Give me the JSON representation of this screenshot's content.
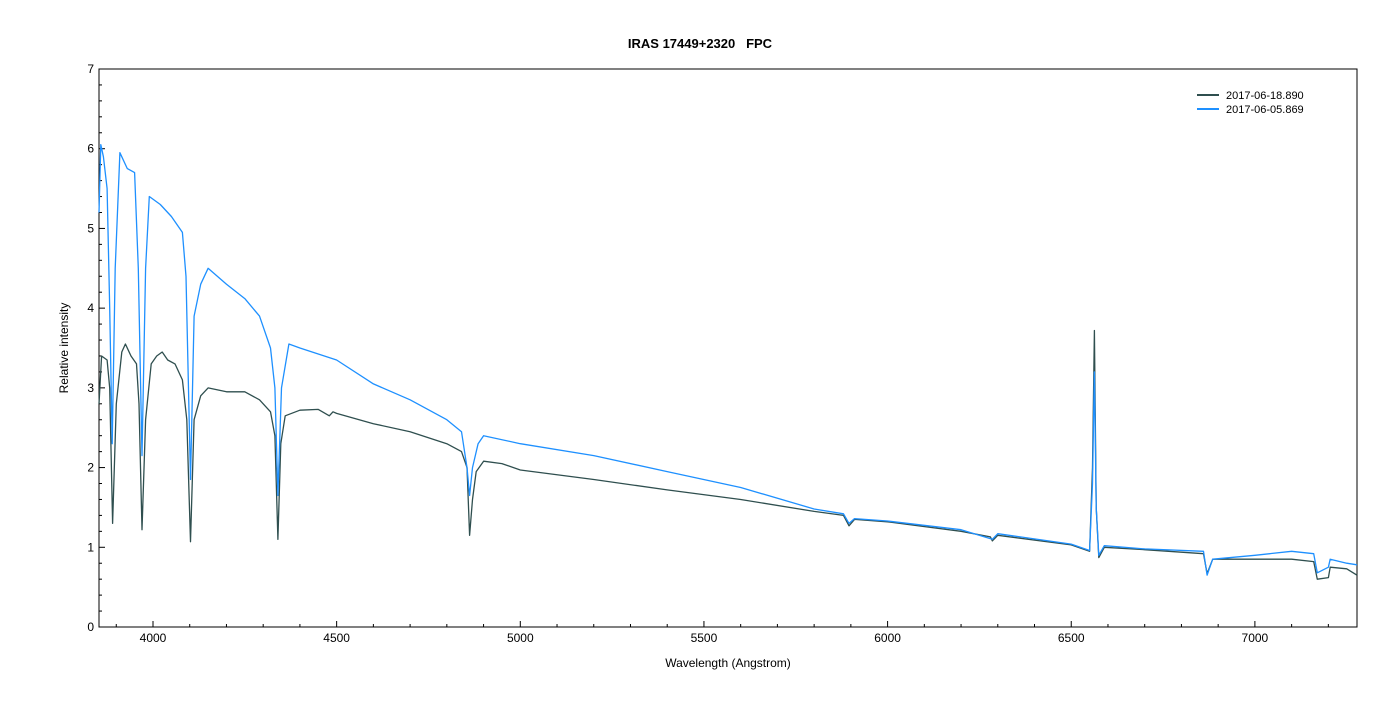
{
  "chart_data": {
    "type": "line",
    "title": "IRAS 17449+2320   FPC",
    "xlabel": "Wavelength (Angstrom)",
    "ylabel": "Relative intensity",
    "xlim": [
      3853,
      7278
    ],
    "ylim": [
      0,
      7
    ],
    "xticks": [
      4000,
      4500,
      5000,
      5500,
      6000,
      6500,
      7000
    ],
    "xminor_step": 100,
    "yticks": [
      0,
      1,
      2,
      3,
      4,
      5,
      6,
      7
    ],
    "yminor_step": 0.2,
    "grid": false,
    "legend_position": "top-right",
    "series": [
      {
        "name": "2017-06-18.890",
        "color": "#2f4f4f",
        "points": [
          [
            3853,
            2.8
          ],
          [
            3860,
            3.4
          ],
          [
            3875,
            3.35
          ],
          [
            3882,
            3.0
          ],
          [
            3890,
            1.3
          ],
          [
            3900,
            2.8
          ],
          [
            3915,
            3.45
          ],
          [
            3925,
            3.55
          ],
          [
            3940,
            3.4
          ],
          [
            3955,
            3.3
          ],
          [
            3962,
            2.8
          ],
          [
            3970,
            1.22
          ],
          [
            3980,
            2.6
          ],
          [
            3995,
            3.3
          ],
          [
            4010,
            3.4
          ],
          [
            4025,
            3.45
          ],
          [
            4040,
            3.35
          ],
          [
            4060,
            3.3
          ],
          [
            4080,
            3.1
          ],
          [
            4092,
            2.6
          ],
          [
            4102,
            1.07
          ],
          [
            4112,
            2.6
          ],
          [
            4130,
            2.9
          ],
          [
            4150,
            3.0
          ],
          [
            4200,
            2.95
          ],
          [
            4250,
            2.95
          ],
          [
            4290,
            2.85
          ],
          [
            4320,
            2.7
          ],
          [
            4332,
            2.4
          ],
          [
            4340,
            1.1
          ],
          [
            4348,
            2.3
          ],
          [
            4360,
            2.65
          ],
          [
            4400,
            2.72
          ],
          [
            4450,
            2.73
          ],
          [
            4480,
            2.65
          ],
          [
            4490,
            2.7
          ],
          [
            4500,
            2.68
          ],
          [
            4600,
            2.55
          ],
          [
            4700,
            2.45
          ],
          [
            4800,
            2.3
          ],
          [
            4840,
            2.2
          ],
          [
            4855,
            2.0
          ],
          [
            4862,
            1.15
          ],
          [
            4870,
            1.6
          ],
          [
            4880,
            1.95
          ],
          [
            4900,
            2.08
          ],
          [
            4950,
            2.05
          ],
          [
            5000,
            1.97
          ],
          [
            5200,
            1.85
          ],
          [
            5400,
            1.72
          ],
          [
            5600,
            1.6
          ],
          [
            5800,
            1.45
          ],
          [
            5880,
            1.4
          ],
          [
            5895,
            1.27
          ],
          [
            5910,
            1.35
          ],
          [
            6000,
            1.32
          ],
          [
            6200,
            1.2
          ],
          [
            6280,
            1.13
          ],
          [
            6285,
            1.08
          ],
          [
            6300,
            1.15
          ],
          [
            6500,
            1.03
          ],
          [
            6550,
            0.95
          ],
          [
            6558,
            2.0
          ],
          [
            6563,
            3.72
          ],
          [
            6568,
            1.5
          ],
          [
            6575,
            0.87
          ],
          [
            6590,
            1.0
          ],
          [
            6700,
            0.97
          ],
          [
            6860,
            0.92
          ],
          [
            6870,
            0.67
          ],
          [
            6885,
            0.85
          ],
          [
            7000,
            0.85
          ],
          [
            7100,
            0.85
          ],
          [
            7160,
            0.82
          ],
          [
            7170,
            0.6
          ],
          [
            7200,
            0.62
          ],
          [
            7205,
            0.75
          ],
          [
            7250,
            0.73
          ],
          [
            7278,
            0.65
          ]
        ]
      },
      {
        "name": "2017-06-05.869",
        "color": "#1e90ff",
        "points": [
          [
            3853,
            5.2
          ],
          [
            3858,
            6.05
          ],
          [
            3865,
            5.9
          ],
          [
            3875,
            5.5
          ],
          [
            3882,
            4.0
          ],
          [
            3889,
            2.3
          ],
          [
            3897,
            4.5
          ],
          [
            3910,
            5.95
          ],
          [
            3930,
            5.75
          ],
          [
            3950,
            5.7
          ],
          [
            3960,
            4.5
          ],
          [
            3970,
            2.15
          ],
          [
            3980,
            4.5
          ],
          [
            3990,
            5.4
          ],
          [
            4020,
            5.3
          ],
          [
            4050,
            5.15
          ],
          [
            4080,
            4.95
          ],
          [
            4090,
            4.4
          ],
          [
            4102,
            1.85
          ],
          [
            4112,
            3.9
          ],
          [
            4130,
            4.3
          ],
          [
            4150,
            4.5
          ],
          [
            4200,
            4.3
          ],
          [
            4250,
            4.12
          ],
          [
            4290,
            3.9
          ],
          [
            4320,
            3.5
          ],
          [
            4332,
            3.0
          ],
          [
            4340,
            1.65
          ],
          [
            4350,
            3.0
          ],
          [
            4370,
            3.55
          ],
          [
            4400,
            3.5
          ],
          [
            4500,
            3.35
          ],
          [
            4600,
            3.05
          ],
          [
            4700,
            2.85
          ],
          [
            4800,
            2.6
          ],
          [
            4840,
            2.45
          ],
          [
            4855,
            2.0
          ],
          [
            4862,
            1.65
          ],
          [
            4870,
            2.0
          ],
          [
            4885,
            2.3
          ],
          [
            4900,
            2.4
          ],
          [
            5000,
            2.3
          ],
          [
            5200,
            2.15
          ],
          [
            5400,
            1.95
          ],
          [
            5600,
            1.75
          ],
          [
            5800,
            1.48
          ],
          [
            5880,
            1.42
          ],
          [
            5895,
            1.3
          ],
          [
            5910,
            1.36
          ],
          [
            6000,
            1.33
          ],
          [
            6200,
            1.22
          ],
          [
            6285,
            1.1
          ],
          [
            6300,
            1.17
          ],
          [
            6500,
            1.04
          ],
          [
            6550,
            0.96
          ],
          [
            6558,
            1.8
          ],
          [
            6563,
            3.2
          ],
          [
            6568,
            1.5
          ],
          [
            6575,
            0.9
          ],
          [
            6590,
            1.02
          ],
          [
            6700,
            0.98
          ],
          [
            6860,
            0.95
          ],
          [
            6870,
            0.65
          ],
          [
            6885,
            0.85
          ],
          [
            7000,
            0.9
          ],
          [
            7100,
            0.95
          ],
          [
            7160,
            0.92
          ],
          [
            7170,
            0.68
          ],
          [
            7200,
            0.75
          ],
          [
            7205,
            0.85
          ],
          [
            7250,
            0.8
          ],
          [
            7278,
            0.78
          ]
        ]
      }
    ]
  }
}
